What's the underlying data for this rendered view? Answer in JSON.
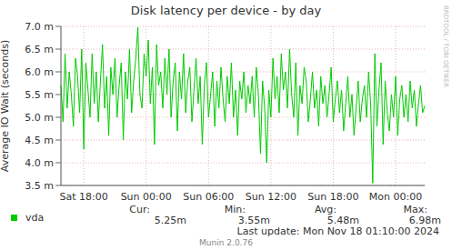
{
  "chart_data": {
    "type": "line",
    "title": "Disk latency per device - by day",
    "y_label": "Average IO Wait (seconds)",
    "categories": [
      null,
      null,
      null,
      null,
      null,
      null,
      null,
      null,
      null,
      null,
      null,
      "Sat 18:00",
      null,
      null,
      null,
      null,
      null,
      null,
      null,
      null,
      null,
      null,
      null,
      null,
      null,
      null,
      null,
      null,
      null,
      null,
      null,
      null,
      null,
      null,
      null,
      null,
      null,
      null,
      null,
      null,
      null,
      "Sun 00:00",
      null,
      null,
      null,
      null,
      null,
      null,
      null,
      null,
      null,
      null,
      null,
      null,
      null,
      null,
      null,
      null,
      null,
      null,
      null,
      null,
      null,
      null,
      null,
      null,
      null,
      null,
      null,
      null,
      null,
      "Sun 06:00",
      null,
      null,
      null,
      null,
      null,
      null,
      null,
      null,
      null,
      null,
      null,
      null,
      null,
      null,
      null,
      null,
      null,
      null,
      null,
      null,
      null,
      null,
      null,
      null,
      null,
      null,
      null,
      null,
      null,
      "Sun 12:00",
      null,
      null,
      null,
      null,
      null,
      null,
      null,
      null,
      null,
      null,
      null,
      null,
      null,
      null,
      null,
      null,
      null,
      null,
      null,
      null,
      null,
      null,
      null,
      null,
      null,
      null,
      null,
      null,
      null,
      "Sun 18:00",
      null,
      null,
      null,
      null,
      null,
      null,
      null,
      null,
      null,
      null,
      null,
      null,
      null,
      null,
      null,
      null,
      null,
      null,
      null,
      null,
      null,
      null,
      null,
      null,
      null,
      null,
      null,
      null,
      null,
      "Mon 00:00",
      null,
      null,
      null,
      null,
      null,
      null,
      null,
      null,
      null,
      null,
      null,
      null,
      null,
      null
    ],
    "series": [
      {
        "name": "vda",
        "color": "#00cc00",
        "values": [
          0.0057,
          0.0049,
          0.0064,
          0.0052,
          0.006,
          0.0055,
          0.0048,
          0.0063,
          0.0059,
          0.0051,
          0.0065,
          0.0043,
          0.0062,
          0.0056,
          0.005,
          0.0064,
          0.0053,
          0.006,
          0.0049,
          0.0058,
          0.0066,
          0.0052,
          0.0059,
          0.0046,
          0.0061,
          0.0055,
          0.0063,
          0.005,
          0.0057,
          0.0062,
          0.0045,
          0.006,
          0.0054,
          0.0065,
          0.0051,
          0.0058,
          0.0063,
          0.00698,
          0.0055,
          0.0052,
          0.0064,
          0.0059,
          0.0067,
          0.0053,
          0.0061,
          0.0044,
          0.0066,
          0.0057,
          0.006,
          0.0052,
          0.0063,
          0.0055,
          0.0065,
          0.005,
          0.0058,
          0.0062,
          0.0047,
          0.006,
          0.0054,
          0.0064,
          0.0051,
          0.0058,
          0.0061,
          0.0049,
          0.0056,
          0.0063,
          0.0053,
          0.0059,
          0.0044,
          0.0057,
          0.0062,
          0.005,
          0.0055,
          0.006,
          0.0048,
          0.0058,
          0.0052,
          0.0061,
          0.0054,
          0.0049,
          0.0059,
          0.0053,
          0.0062,
          0.005,
          0.0056,
          0.0046,
          0.0058,
          0.0054,
          0.006,
          0.0051,
          0.0057,
          0.0053,
          0.0059,
          0.005,
          0.0061,
          0.0055,
          0.0042,
          0.0058,
          0.0052,
          0.004,
          0.0056,
          0.005,
          0.0063,
          0.0054,
          0.0059,
          0.0051,
          0.0064,
          0.0056,
          0.006,
          0.0052,
          0.0065,
          0.0055,
          0.005,
          0.0062,
          0.0046,
          0.0057,
          0.0053,
          0.0061,
          0.0058,
          0.0049,
          0.0054,
          0.006,
          0.0052,
          0.0056,
          0.0048,
          0.0059,
          0.0053,
          0.0057,
          0.005,
          0.0055,
          0.0061,
          0.0049,
          0.0054,
          0.0058,
          0.0051,
          0.0056,
          0.0047,
          0.0053,
          0.0059,
          0.005,
          0.0055,
          0.0046,
          0.0052,
          0.0058,
          0.0049,
          0.0054,
          0.0057,
          0.005,
          0.006,
          0.0053,
          0.00355,
          0.0064,
          0.0048,
          0.0056,
          0.0062,
          0.0044,
          0.0058,
          0.0051,
          0.0047,
          0.0055,
          0.005,
          0.0059,
          0.0046,
          0.0054,
          0.0057,
          0.005,
          0.0055,
          0.0049,
          0.0058,
          0.0052,
          0.0056,
          0.0048,
          0.0053,
          0.0057,
          0.0051,
          0.00525
        ]
      }
    ],
    "ylim": [
      0.0035,
      0.007
    ],
    "yticks": [
      {
        "value": 0.0035,
        "label": "3.5 m"
      },
      {
        "value": 0.004,
        "label": "4.0 m"
      },
      {
        "value": 0.0045,
        "label": "4.5 m"
      },
      {
        "value": 0.005,
        "label": "5.0 m"
      },
      {
        "value": 0.0055,
        "label": "5.5 m"
      },
      {
        "value": 0.006,
        "label": "6.0 m"
      },
      {
        "value": 0.0065,
        "label": "6.5 m"
      },
      {
        "value": 0.007,
        "label": "7.0 m"
      }
    ],
    "grid": true,
    "summary": {
      "labels": [
        "Cur:",
        "Min:",
        "Avg:",
        "Max:"
      ],
      "values": [
        0.00525,
        0.00355,
        0.00548,
        0.00698
      ],
      "value_labels": [
        "5.25m",
        "3.55m",
        "5.48m",
        "6.98m"
      ]
    },
    "annotations": [
      "Last update: Mon Nov 18 01:10:00 2024",
      "Munin 2.0.76",
      "RRDTOOL / TOBI OETIKER"
    ]
  }
}
